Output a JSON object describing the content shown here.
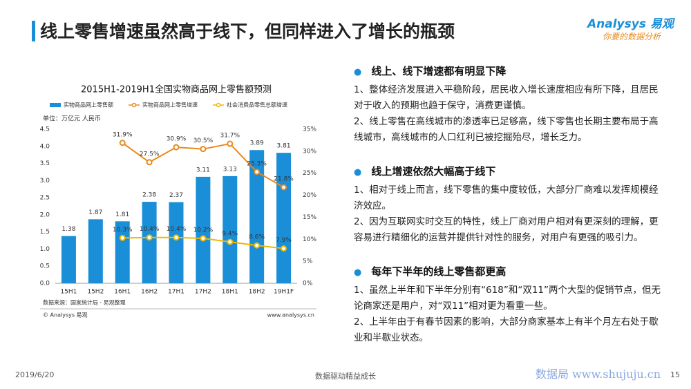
{
  "header": {
    "title": "线上零售增速虽然高于线下，但同样进入了增长的瓶颈",
    "logo": "Analysys 易观",
    "slogan": "你要的数据分析"
  },
  "chart_data": {
    "type": "bar",
    "title": "2015H1-2019H1全国实物商品网上零售额预测",
    "unit_label": "单位：万亿元 人民币",
    "categories": [
      "15H1",
      "15H2",
      "16H1",
      "16H2",
      "17H1",
      "17H2",
      "18H1",
      "18H2",
      "19H1F"
    ],
    "series": [
      {
        "name": "实物商品网上零售额",
        "type": "bar",
        "color": "#1a8fd8",
        "values": [
          1.38,
          1.87,
          1.81,
          2.38,
          2.37,
          3.11,
          3.13,
          3.89,
          3.81
        ]
      },
      {
        "name": "实物商品网上零售增速",
        "type": "line",
        "axis": "y2",
        "color": "#e8891c",
        "values": [
          null,
          null,
          31.9,
          27.5,
          30.9,
          30.5,
          31.7,
          25.3,
          21.8
        ],
        "value_labels": [
          null,
          null,
          "31.9%",
          "27.5%",
          "30.9%",
          "30.5%",
          "31.7%",
          "25.3%",
          "21.8%"
        ]
      },
      {
        "name": "社会消费品零售总额增速",
        "type": "line",
        "axis": "y2",
        "color": "#f2b600",
        "values": [
          null,
          null,
          10.3,
          10.4,
          10.4,
          10.2,
          9.4,
          8.6,
          7.9
        ],
        "value_labels": [
          null,
          null,
          "10.3%",
          "10.4%",
          "10.4%",
          "10.2%",
          "9.4%",
          "8.6%",
          "7.9%"
        ]
      }
    ],
    "ylim": [
      0,
      4.5
    ],
    "yticks": [
      {
        "value": 0,
        "label": "0.0"
      },
      {
        "value": 0.5,
        "label": "0.5"
      },
      {
        "value": 1,
        "label": "1.0"
      },
      {
        "value": 1.5,
        "label": "1.5"
      },
      {
        "value": 2,
        "label": "2.0"
      },
      {
        "value": 2.5,
        "label": "2.5"
      },
      {
        "value": 3,
        "label": "3.0"
      },
      {
        "value": 3.5,
        "label": "3.5"
      },
      {
        "value": 4,
        "label": "4.0"
      },
      {
        "value": 4.5,
        "label": "4.5"
      }
    ],
    "y2lim": [
      0,
      35
    ],
    "y2ticks": [
      {
        "value": 0,
        "label": "0%"
      },
      {
        "value": 5,
        "label": "5%"
      },
      {
        "value": 10,
        "label": "10%"
      },
      {
        "value": 15,
        "label": "15%"
      },
      {
        "value": 20,
        "label": "20%"
      },
      {
        "value": 25,
        "label": "25%"
      },
      {
        "value": 30,
        "label": "30%"
      },
      {
        "value": 35,
        "label": "35%"
      }
    ],
    "source": "数据来源：国家统计局 · 易观整理",
    "copyright": "© Analysys 易观",
    "website": "www.analysys.cn"
  },
  "sections": [
    {
      "heading": "线上、线下增速都有明显下降",
      "paragraphs": [
        "1、整体经济发展进入平稳阶段，居民收入增长速度相应有所下降，且居民对于收入的预期也趋于保守，消费更谨慎。",
        "2、线上零售在高线城市的渗透率已足够高，线下零售也长期主要布局于高线城市，高线城市的人口红利已被挖掘殆尽，增长乏力。"
      ]
    },
    {
      "heading": "线上增速依然大幅高于线下",
      "paragraphs": [
        "1、相对于线上而言，线下零售的集中度较低，大部分厂商难以发挥规模经济效应。",
        "2、因为互联网实时交互的特性，线上厂商对用户相对有更深刻的理解，更容易进行精细化的运营并提供针对性的服务，对用户有更强的吸引力。"
      ]
    },
    {
      "heading": "每年下半年的线上零售都更高",
      "paragraphs": [
        "1、虽然上半年和下半年分别有“618”和“双11”两个大型的促销节点，但无论商家还是用户，对“双11”相对更为看重一些。",
        "2、上半年由于有春节因素的影响，大部分商家基本上有半个月左右处于歇业和半歇业状态。"
      ]
    }
  ],
  "footer": {
    "date": "2019/6/20",
    "slogan": "数据驱动精益成长",
    "page": "15"
  },
  "watermark": "数据局 www.shujuju.cn"
}
